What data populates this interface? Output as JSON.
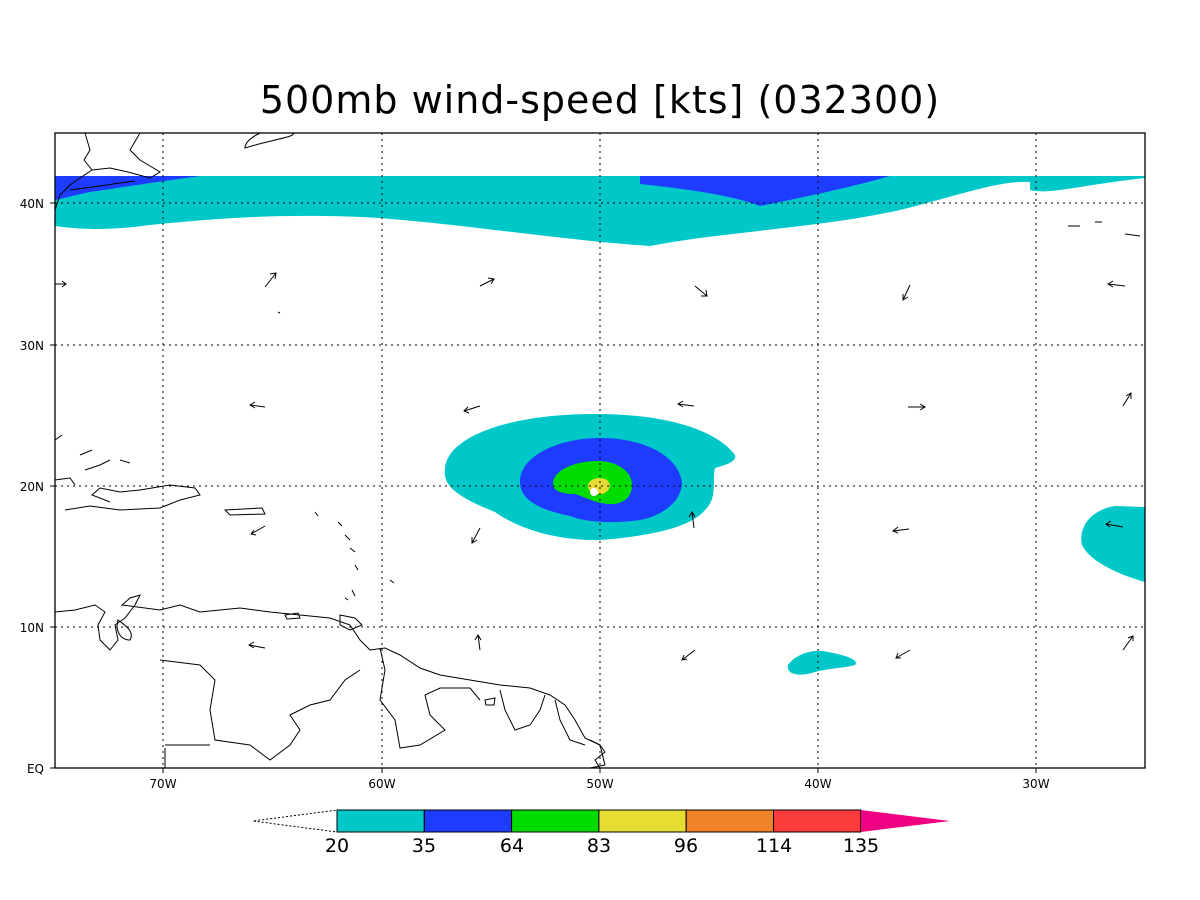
{
  "title": "500mb wind-speed [kts] (032300)",
  "lat_labels": [
    "40N",
    "30N",
    "20N",
    "10N",
    "EQ"
  ],
  "lon_labels": [
    "70W",
    "60W",
    "50W",
    "40W",
    "30W"
  ],
  "colorbar": {
    "levels": [
      "20",
      "35",
      "64",
      "83",
      "96",
      "114",
      "135"
    ],
    "colors": [
      "#00c8c8",
      "#1e3cff",
      "#00dc00",
      "#e6dc32",
      "#f08228",
      "#fa3c3c",
      "#f00082"
    ]
  },
  "map": {
    "lon_range": [
      -75,
      -25
    ],
    "lat_range": [
      0,
      45
    ],
    "storm_center": {
      "lon": -50,
      "lat": 20
    }
  }
}
